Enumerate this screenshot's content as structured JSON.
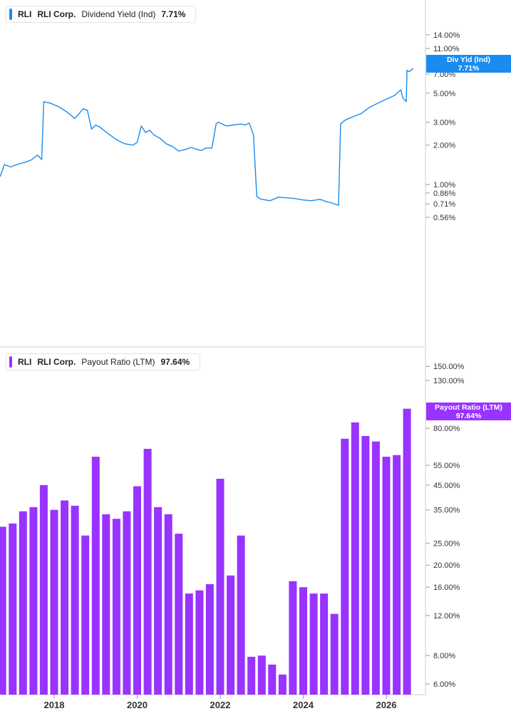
{
  "panel_top": {
    "legend": {
      "ticker": "RLI",
      "company": "RLI Corp.",
      "metric": "Dividend Yield (Ind)",
      "value": "7.71%"
    },
    "flag": {
      "label": "Div Yld (Ind)",
      "value": "7.71%"
    },
    "color": "#1a8cf0"
  },
  "panel_bottom": {
    "legend": {
      "ticker": "RLI",
      "company": "RLI Corp.",
      "metric": "Payout Ratio (LTM)",
      "value": "97.64%"
    },
    "flag": {
      "label": "Payout Ratio (LTM)",
      "value": "97.64%"
    },
    "color": "#9933ff"
  },
  "chart_data": [
    {
      "type": "line",
      "scale": "log",
      "series": [
        {
          "name": "Dividend Yield (Ind)",
          "x": [
            2016.7,
            2016.8,
            2016.95,
            2017.1,
            2017.3,
            2017.45,
            2017.6,
            2017.7,
            2017.75,
            2017.9,
            2018.1,
            2018.3,
            2018.5,
            2018.7,
            2018.8,
            2018.9,
            2019.0,
            2019.1,
            2019.3,
            2019.5,
            2019.7,
            2019.9,
            2020.0,
            2020.1,
            2020.2,
            2020.3,
            2020.4,
            2020.55,
            2020.7,
            2020.85,
            2021.0,
            2021.15,
            2021.3,
            2021.45,
            2021.55,
            2021.65,
            2021.8,
            2021.9,
            2021.95,
            2022.05,
            2022.15,
            2022.3,
            2022.5,
            2022.6,
            2022.7,
            2022.8,
            2022.88,
            2022.95,
            2023.0,
            2023.2,
            2023.4,
            2023.6,
            2023.8,
            2024.0,
            2024.2,
            2024.4,
            2024.55,
            2024.7,
            2024.85,
            2024.9,
            2025.0,
            2025.2,
            2025.4,
            2025.6,
            2025.8,
            2026.0,
            2026.2,
            2026.35,
            2026.4,
            2026.48,
            2026.5,
            2026.55,
            2026.65
          ],
          "values": [
            1.15,
            1.42,
            1.36,
            1.42,
            1.48,
            1.54,
            1.68,
            1.55,
            4.3,
            4.2,
            3.95,
            3.6,
            3.2,
            3.8,
            3.7,
            2.65,
            2.85,
            2.75,
            2.45,
            2.2,
            2.05,
            2.0,
            2.1,
            2.8,
            2.5,
            2.6,
            2.4,
            2.25,
            2.05,
            1.95,
            1.8,
            1.85,
            1.92,
            1.85,
            1.82,
            1.9,
            1.9,
            2.9,
            3.0,
            2.9,
            2.8,
            2.85,
            2.9,
            2.85,
            2.95,
            2.4,
            0.81,
            0.78,
            0.77,
            0.75,
            0.8,
            0.79,
            0.78,
            0.76,
            0.75,
            0.77,
            0.74,
            0.72,
            0.69,
            2.9,
            3.1,
            3.3,
            3.5,
            3.9,
            4.2,
            4.5,
            4.8,
            5.3,
            4.6,
            4.3,
            7.5,
            7.3,
            7.71
          ],
          "color": "#1a8cf0"
        }
      ],
      "yticks": [
        "0.56%",
        "0.71%",
        "0.86%",
        "1.00%",
        "2.00%",
        "3.00%",
        "5.00%",
        "7.00%",
        "11.00%",
        "14.00%"
      ],
      "xticks": [
        "2018",
        "2020",
        "2022",
        "2024",
        "2026"
      ]
    },
    {
      "type": "bar",
      "scale": "log",
      "series": [
        {
          "name": "Payout Ratio (LTM)",
          "x": [
            2016.75,
            2017.0,
            2017.25,
            2017.5,
            2017.75,
            2018.0,
            2018.25,
            2018.5,
            2018.75,
            2019.0,
            2019.25,
            2019.5,
            2019.75,
            2020.0,
            2020.25,
            2020.5,
            2020.75,
            2021.0,
            2021.25,
            2021.5,
            2021.75,
            2022.0,
            2022.25,
            2022.5,
            2022.75,
            2023.0,
            2023.25,
            2023.5,
            2023.75,
            2024.0,
            2024.25,
            2024.5,
            2024.75,
            2025.0,
            2025.25,
            2025.5,
            2025.75,
            2026.0,
            2026.25,
            2026.5
          ],
          "values": [
            29.5,
            30.5,
            34.5,
            36.0,
            45.0,
            35.0,
            38.5,
            36.5,
            27.0,
            60.0,
            33.5,
            32.0,
            34.5,
            44.5,
            65.0,
            36.0,
            33.5,
            27.5,
            15.0,
            15.5,
            16.5,
            48.0,
            18.0,
            27.0,
            7.9,
            8.0,
            7.3,
            6.6,
            17.0,
            16.0,
            15.0,
            15.0,
            12.2,
            72.0,
            85.0,
            74.0,
            70.0,
            60.0,
            61.0,
            97.64
          ],
          "color": "#9933ff"
        }
      ],
      "yticks": [
        "6.00%",
        "8.00%",
        "12.00%",
        "16.00%",
        "20.00%",
        "25.00%",
        "35.00%",
        "45.00%",
        "55.00%",
        "80.00%",
        "130.00%",
        "150.00%"
      ],
      "xticks": [
        "2018",
        "2020",
        "2022",
        "2024",
        "2026"
      ]
    }
  ]
}
